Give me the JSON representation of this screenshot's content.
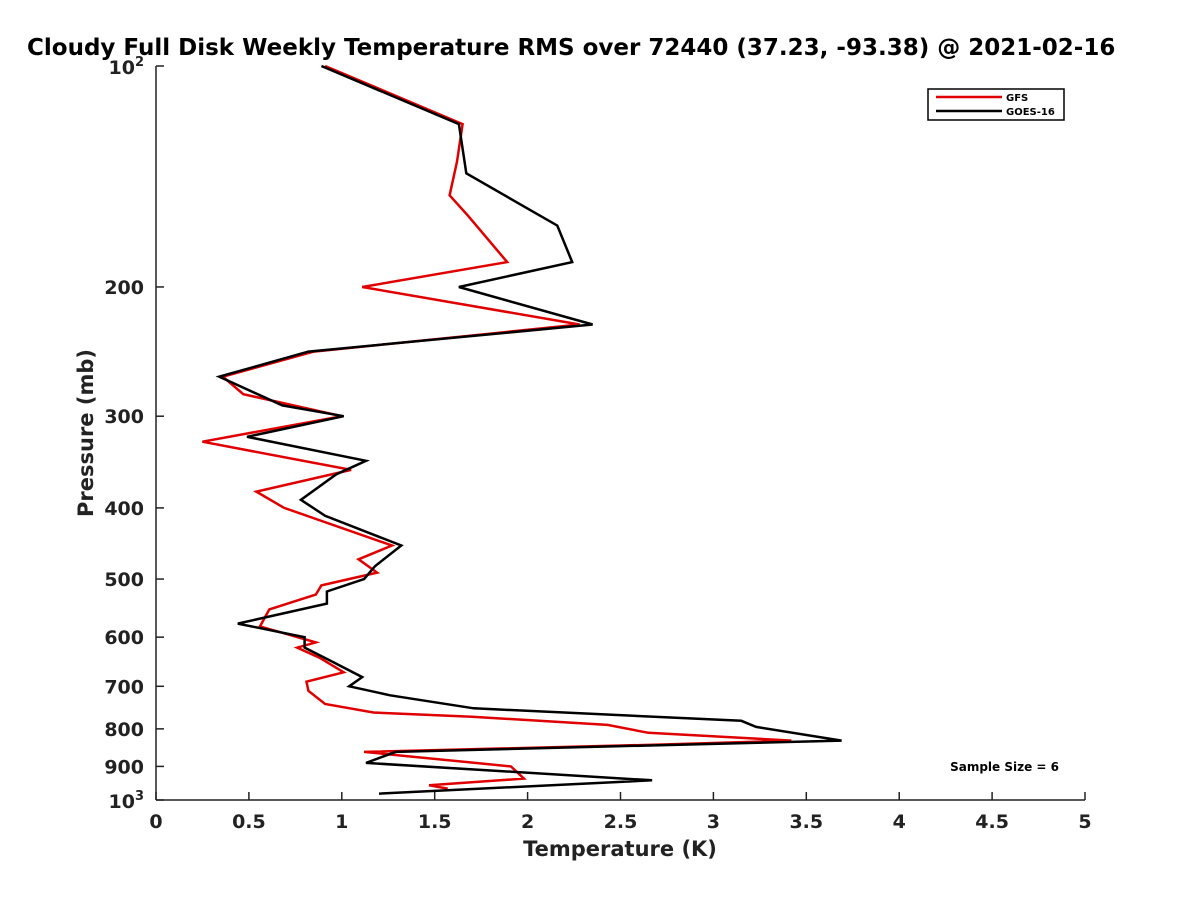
{
  "chart_data": {
    "type": "line",
    "title": "Cloudy Full Disk Weekly Temperature RMS over 72440 (37.23, -93.38) @ 2021-02-16",
    "xlabel": "Temperature (K)",
    "ylabel": "Pressure (mb)",
    "xlim": [
      0,
      5
    ],
    "ylim": [
      100,
      1000
    ],
    "y_scale": "log",
    "y_reversed": true,
    "x_ticks": [
      0,
      0.5,
      1,
      1.5,
      2,
      2.5,
      3,
      3.5,
      4,
      4.5,
      5
    ],
    "x_tick_labels": [
      "0",
      "0.5",
      "1",
      "1.5",
      "2",
      "2.5",
      "3",
      "3.5",
      "4",
      "4.5",
      "5"
    ],
    "y_ticks": [
      {
        "value": 100,
        "base": "10",
        "exp": "2"
      },
      {
        "value": 200,
        "label": "200"
      },
      {
        "value": 300,
        "label": "300"
      },
      {
        "value": 400,
        "label": "400"
      },
      {
        "value": 500,
        "label": "500"
      },
      {
        "value": 600,
        "label": "600"
      },
      {
        "value": 700,
        "label": "700"
      },
      {
        "value": 800,
        "label": "800"
      },
      {
        "value": 900,
        "label": "900"
      },
      {
        "value": 1000,
        "base": "10",
        "exp": "3"
      }
    ],
    "grid": false,
    "legend_position": "top-right",
    "annotation": "Sample Size = 6",
    "series": [
      {
        "name": "GFS",
        "color": "#e00000",
        "x": [
          0.91,
          1.65,
          1.62,
          1.58,
          1.68,
          1.89,
          1.11,
          2.28,
          0.85,
          0.36,
          0.47,
          1.0,
          0.25,
          1.05,
          0.54,
          0.69,
          1.27,
          1.09,
          1.19,
          0.89,
          0.86,
          0.61,
          0.56,
          0.86,
          0.76,
          0.88,
          1.01,
          0.81,
          0.82,
          0.91,
          1.17,
          1.7,
          2.43,
          2.65,
          3.42,
          2.75,
          1.12,
          1.91,
          1.98,
          1.47,
          1.57
        ],
        "y": [
          100,
          120,
          135,
          150,
          160,
          185,
          200,
          225,
          245,
          265,
          280,
          300,
          325,
          355,
          380,
          400,
          450,
          470,
          490,
          510,
          525,
          550,
          580,
          610,
          620,
          640,
          670,
          690,
          710,
          740,
          760,
          770,
          790,
          810,
          830,
          840,
          860,
          900,
          935,
          955,
          965
        ],
        "color_in_legend": "#e00000"
      },
      {
        "name": "GOES-16",
        "color": "#000000",
        "x": [
          0.89,
          1.63,
          1.67,
          2.16,
          2.24,
          1.63,
          2.35,
          0.82,
          0.34,
          0.68,
          1.01,
          0.49,
          1.13,
          0.97,
          0.78,
          0.91,
          1.32,
          1.18,
          1.12,
          0.92,
          0.92,
          0.44,
          0.8,
          0.8,
          0.96,
          1.11,
          1.04,
          1.26,
          1.71,
          3.15,
          3.23,
          3.69,
          1.29,
          1.13,
          2.67,
          1.2
        ],
        "y": [
          100,
          120,
          140,
          165,
          185,
          200,
          225,
          245,
          265,
          290,
          300,
          320,
          345,
          360,
          390,
          410,
          450,
          480,
          500,
          520,
          540,
          575,
          600,
          620,
          650,
          680,
          700,
          720,
          750,
          780,
          795,
          830,
          860,
          890,
          940,
          980
        ]
      }
    ]
  }
}
